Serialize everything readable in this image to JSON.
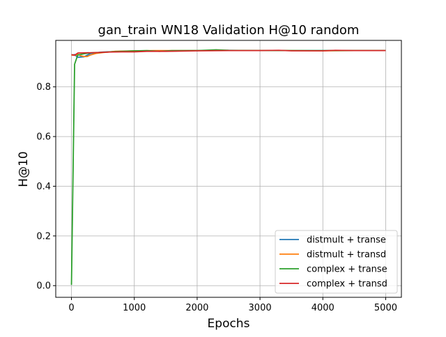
{
  "chart_data": {
    "type": "line",
    "title": "gan_train WN18 Validation H@10 random",
    "xlabel": "Epochs",
    "ylabel": "H@10",
    "xlim": [
      -250,
      5250
    ],
    "ylim": [
      -0.047,
      0.987
    ],
    "xticks": [
      0,
      1000,
      2000,
      3000,
      4000,
      5000
    ],
    "xtick_labels": [
      "0",
      "1000",
      "2000",
      "3000",
      "4000",
      "5000"
    ],
    "yticks": [
      0.0,
      0.2,
      0.4,
      0.6,
      0.8
    ],
    "ytick_labels": [
      "0.0",
      "0.2",
      "0.4",
      "0.6",
      "0.8"
    ],
    "grid": true,
    "legend_position": "lower-right",
    "series": [
      {
        "name": "distmult + transe",
        "color": "#1f77b4",
        "x": [
          0,
          50,
          100,
          200,
          300,
          400,
          500,
          700,
          1000,
          1300,
          1500,
          2000,
          2500,
          3000,
          3500,
          4000,
          4500,
          5000
        ],
        "y": [
          0.927,
          0.93,
          0.919,
          0.921,
          0.934,
          0.938,
          0.94,
          0.942,
          0.944,
          0.945,
          0.945,
          0.946,
          0.947,
          0.946,
          0.946,
          0.946,
          0.946,
          0.946
        ]
      },
      {
        "name": "distmult + transd",
        "color": "#ff7f0e",
        "x": [
          0,
          50,
          100,
          150,
          200,
          250,
          300,
          400,
          500,
          700,
          1000,
          1300,
          1500,
          2000,
          2500,
          3000,
          3500,
          4000,
          4500,
          5000
        ],
        "y": [
          0.928,
          0.927,
          0.931,
          0.925,
          0.922,
          0.922,
          0.928,
          0.935,
          0.938,
          0.943,
          0.945,
          0.946,
          0.946,
          0.946,
          0.946,
          0.946,
          0.946,
          0.945,
          0.946,
          0.946
        ]
      },
      {
        "name": "complex + transe",
        "color": "#2ca02c",
        "x": [
          0,
          50,
          100,
          200,
          300,
          500,
          700,
          1000,
          1200,
          1400,
          1600,
          2000,
          2300,
          2500,
          3000,
          3500,
          4000,
          4500,
          5000
        ],
        "y": [
          0.003,
          0.891,
          0.928,
          0.933,
          0.937,
          0.939,
          0.942,
          0.945,
          0.946,
          0.943,
          0.946,
          0.946,
          0.949,
          0.947,
          0.946,
          0.946,
          0.946,
          0.946,
          0.946
        ]
      },
      {
        "name": "complex + transd",
        "color": "#d62728",
        "x": [
          0,
          50,
          100,
          200,
          400,
          600,
          800,
          1000,
          1200,
          1500,
          2000,
          2500,
          3000,
          3300,
          3500,
          4000,
          4200,
          4500,
          5000
        ],
        "y": [
          0.93,
          0.927,
          0.936,
          0.937,
          0.938,
          0.94,
          0.941,
          0.941,
          0.943,
          0.943,
          0.945,
          0.946,
          0.946,
          0.947,
          0.945,
          0.945,
          0.947,
          0.946,
          0.946
        ]
      }
    ]
  }
}
